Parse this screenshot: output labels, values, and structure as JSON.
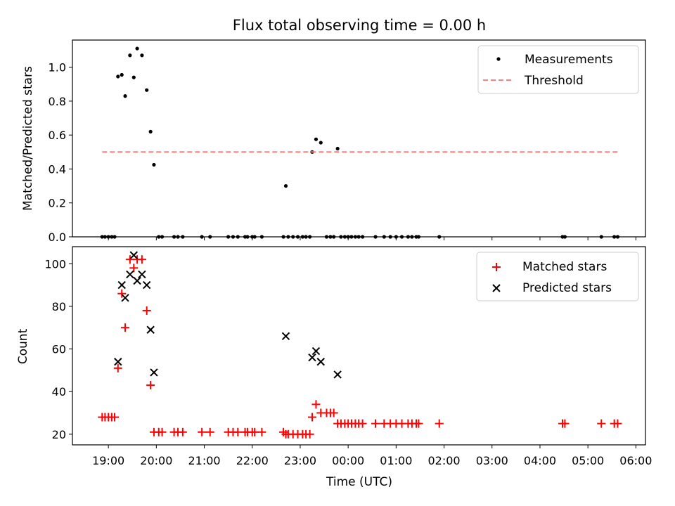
{
  "title": "Flux total observing time = 0.00 h",
  "chart_data": [
    {
      "type": "scatter",
      "ylabel": "Matched/Predicted stars",
      "xlabel": "",
      "xlim": [
        18.25,
        30.2
      ],
      "ylim": [
        0,
        1.16
      ],
      "yticks": [
        0.0,
        0.2,
        0.4,
        0.6,
        0.8,
        1.0
      ],
      "ytick_labels": [
        "0.0",
        "0.2",
        "0.4",
        "0.6",
        "0.8",
        "1.0"
      ],
      "grid": false,
      "legend": "top-right",
      "series": [
        {
          "name": "Measurements",
          "marker": "dot",
          "color": "#000000",
          "points": [
            [
              18.87,
              0
            ],
            [
              18.93,
              0
            ],
            [
              19.0,
              0
            ],
            [
              19.07,
              0
            ],
            [
              19.13,
              0
            ],
            [
              19.2,
              0.945
            ],
            [
              19.28,
              0.955
            ],
            [
              19.35,
              0.83
            ],
            [
              19.45,
              1.07
            ],
            [
              19.53,
              0.94
            ],
            [
              19.6,
              1.11
            ],
            [
              19.7,
              1.07
            ],
            [
              19.8,
              0.865
            ],
            [
              19.88,
              0.62
            ],
            [
              19.95,
              0.425
            ],
            [
              20.05,
              0
            ],
            [
              20.12,
              0
            ],
            [
              20.37,
              0
            ],
            [
              20.45,
              0
            ],
            [
              20.55,
              0
            ],
            [
              20.95,
              0
            ],
            [
              21.12,
              0
            ],
            [
              21.5,
              0
            ],
            [
              21.6,
              0
            ],
            [
              21.7,
              0
            ],
            [
              21.85,
              0
            ],
            [
              21.9,
              0
            ],
            [
              22.0,
              0
            ],
            [
              22.05,
              0
            ],
            [
              22.2,
              0
            ],
            [
              22.65,
              0
            ],
            [
              22.7,
              0.3
            ],
            [
              22.75,
              0
            ],
            [
              22.85,
              0
            ],
            [
              22.95,
              0
            ],
            [
              23.05,
              0
            ],
            [
              23.12,
              0
            ],
            [
              23.2,
              0
            ],
            [
              23.25,
              0.5
            ],
            [
              23.33,
              0.575
            ],
            [
              23.43,
              0.555
            ],
            [
              23.55,
              0
            ],
            [
              23.63,
              0
            ],
            [
              23.7,
              0
            ],
            [
              23.78,
              0.52
            ],
            [
              23.85,
              0
            ],
            [
              23.93,
              0
            ],
            [
              24.0,
              0
            ],
            [
              24.07,
              0
            ],
            [
              24.15,
              0
            ],
            [
              24.22,
              0
            ],
            [
              24.3,
              0
            ],
            [
              24.57,
              0
            ],
            [
              24.75,
              0
            ],
            [
              24.88,
              0
            ],
            [
              25.0,
              0
            ],
            [
              25.12,
              0
            ],
            [
              25.25,
              0
            ],
            [
              25.33,
              0
            ],
            [
              25.42,
              0
            ],
            [
              25.47,
              0
            ],
            [
              25.9,
              0
            ],
            [
              28.47,
              0
            ],
            [
              28.52,
              0
            ],
            [
              29.28,
              0
            ],
            [
              29.55,
              0
            ],
            [
              29.62,
              0
            ]
          ]
        },
        {
          "name": "Threshold",
          "line_style": "dashed",
          "color": "#ff7f7f",
          "x": [
            18.87,
            29.65
          ],
          "y": [
            0.5,
            0.5
          ]
        }
      ]
    },
    {
      "type": "scatter",
      "ylabel": "Count",
      "xlabel": "Time (UTC)",
      "xlim": [
        18.25,
        30.2
      ],
      "ylim": [
        15,
        108
      ],
      "yticks": [
        20,
        40,
        60,
        80,
        100
      ],
      "ytick_labels": [
        "20",
        "40",
        "60",
        "80",
        "100"
      ],
      "xticks": [
        19,
        20,
        21,
        22,
        23,
        24,
        25,
        26,
        27,
        28,
        29,
        30
      ],
      "xtick_labels": [
        "19:00",
        "20:00",
        "21:00",
        "22:00",
        "23:00",
        "00:00",
        "01:00",
        "02:00",
        "03:00",
        "04:00",
        "05:00",
        "06:00"
      ],
      "grid": false,
      "legend": "top-right",
      "series": [
        {
          "name": "Matched stars",
          "marker": "plus",
          "color": "#ff0000",
          "points": [
            [
              18.87,
              28
            ],
            [
              18.93,
              28
            ],
            [
              19.0,
              28
            ],
            [
              19.07,
              28
            ],
            [
              19.13,
              28
            ],
            [
              19.2,
              51
            ],
            [
              19.28,
              86
            ],
            [
              19.35,
              70
            ],
            [
              19.45,
              102
            ],
            [
              19.53,
              98
            ],
            [
              19.6,
              102
            ],
            [
              19.7,
              102
            ],
            [
              19.8,
              78
            ],
            [
              19.88,
              43
            ],
            [
              19.95,
              21
            ],
            [
              20.05,
              21
            ],
            [
              20.12,
              21
            ],
            [
              20.37,
              21
            ],
            [
              20.45,
              21
            ],
            [
              20.55,
              21
            ],
            [
              20.95,
              21
            ],
            [
              21.12,
              21
            ],
            [
              21.5,
              21
            ],
            [
              21.6,
              21
            ],
            [
              21.7,
              21
            ],
            [
              21.85,
              21
            ],
            [
              21.9,
              21
            ],
            [
              22.0,
              21
            ],
            [
              22.05,
              21
            ],
            [
              22.2,
              21
            ],
            [
              22.65,
              21
            ],
            [
              22.7,
              20
            ],
            [
              22.75,
              20
            ],
            [
              22.85,
              20
            ],
            [
              22.95,
              20
            ],
            [
              23.05,
              20
            ],
            [
              23.12,
              20
            ],
            [
              23.2,
              20
            ],
            [
              23.25,
              28
            ],
            [
              23.33,
              34
            ],
            [
              23.43,
              30
            ],
            [
              23.55,
              30
            ],
            [
              23.63,
              30
            ],
            [
              23.7,
              30
            ],
            [
              23.78,
              25
            ],
            [
              23.85,
              25
            ],
            [
              23.93,
              25
            ],
            [
              24.0,
              25
            ],
            [
              24.07,
              25
            ],
            [
              24.15,
              25
            ],
            [
              24.22,
              25
            ],
            [
              24.3,
              25
            ],
            [
              24.57,
              25
            ],
            [
              24.75,
              25
            ],
            [
              24.88,
              25
            ],
            [
              25.0,
              25
            ],
            [
              25.12,
              25
            ],
            [
              25.25,
              25
            ],
            [
              25.33,
              25
            ],
            [
              25.42,
              25
            ],
            [
              25.47,
              25
            ],
            [
              25.9,
              25
            ],
            [
              28.47,
              25
            ],
            [
              28.52,
              25
            ],
            [
              29.28,
              25
            ],
            [
              29.55,
              25
            ],
            [
              29.62,
              25
            ]
          ]
        },
        {
          "name": "Predicted stars",
          "marker": "x",
          "color": "#000000",
          "points": [
            [
              19.2,
              54
            ],
            [
              19.28,
              90
            ],
            [
              19.35,
              84
            ],
            [
              19.45,
              95
            ],
            [
              19.53,
              104
            ],
            [
              19.6,
              92
            ],
            [
              19.7,
              95
            ],
            [
              19.8,
              90
            ],
            [
              19.88,
              69
            ],
            [
              19.95,
              49
            ],
            [
              22.7,
              66
            ],
            [
              23.25,
              56
            ],
            [
              23.33,
              59
            ],
            [
              23.43,
              54
            ],
            [
              23.78,
              48
            ]
          ]
        }
      ]
    }
  ]
}
